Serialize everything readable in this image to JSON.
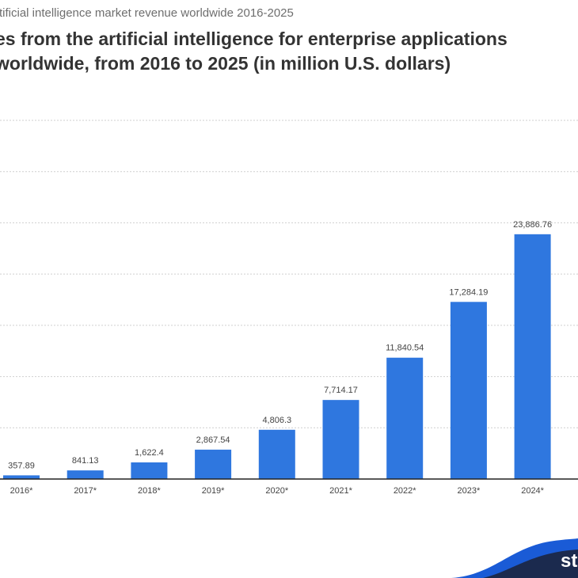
{
  "header": {
    "subtitle": "rtificial intelligence market revenue worldwide 2016-2025",
    "title_line1": "es from the artificial intelligence for enterprise applications",
    "title_line2": "worldwide, from 2016 to 2025 (in million U.S. dollars)"
  },
  "colors": {
    "bar": "#2f77df",
    "grid": "#cfcfcf",
    "axis": "#222222",
    "label": "#444444",
    "logo": "#1a5bd6",
    "logo_dark": "#1b2a4e"
  },
  "logo_text": "st",
  "chart_data": {
    "type": "bar",
    "categories": [
      "2016*",
      "2017*",
      "2018*",
      "2019*",
      "2020*",
      "2021*",
      "2022*",
      "2023*",
      "2024*"
    ],
    "values": [
      357.89,
      841.13,
      1622.4,
      2867.54,
      4806.3,
      7714.17,
      11840.54,
      17284.19,
      23886.76
    ],
    "value_labels": [
      "357.89",
      "841.13",
      "1,622.4",
      "2,867.54",
      "4,806.3",
      "7,714.17",
      "11,840.54",
      "17,284.19",
      "23,886.76"
    ],
    "ylim": [
      0,
      35000
    ],
    "grid_step": 5000,
    "grid": true,
    "title": "es from the artificial intelligence for enterprise applications worldwide, from 2016 to 2025 (in million U.S. dollars)",
    "xlabel": "",
    "ylabel": ""
  }
}
